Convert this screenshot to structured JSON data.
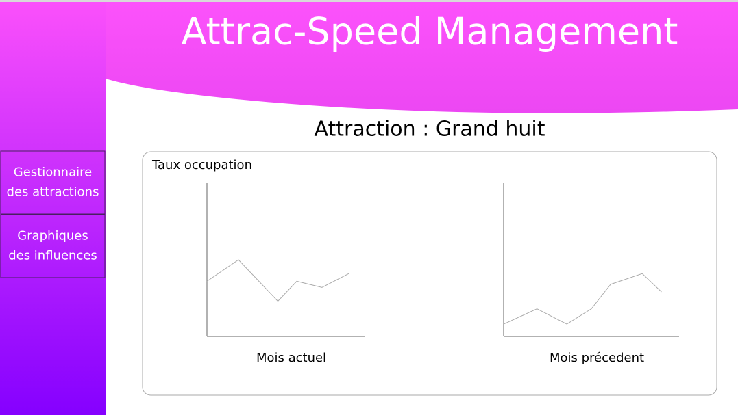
{
  "header": {
    "title": "Attrac-Speed Management"
  },
  "nav": {
    "items": [
      "Gestionnaire\ndes attractions",
      "Graphiques\ndes influences"
    ]
  },
  "attraction_title": "Attraction : Grand huit",
  "panel": {
    "label": "Taux occupation"
  },
  "chart_data": [
    {
      "type": "line",
      "title": "Mois actuel",
      "x": [
        0,
        20,
        45,
        57,
        73,
        90
      ],
      "xlim": [
        0,
        100
      ],
      "series": [
        {
          "color": "#aaaaaa",
          "values": [
            36,
            50,
            23,
            36,
            32,
            41
          ]
        }
      ],
      "ylim": [
        0,
        100
      ]
    },
    {
      "type": "line",
      "title": "Mois précedent",
      "x": [
        0,
        19,
        36,
        50,
        61,
        79,
        90
      ],
      "xlim": [
        0,
        100
      ],
      "series": [
        {
          "color": "#aaaaaa",
          "values": [
            8,
            18,
            8,
            18,
            34,
            41,
            29
          ]
        }
      ],
      "ylim": [
        0,
        100
      ]
    }
  ]
}
